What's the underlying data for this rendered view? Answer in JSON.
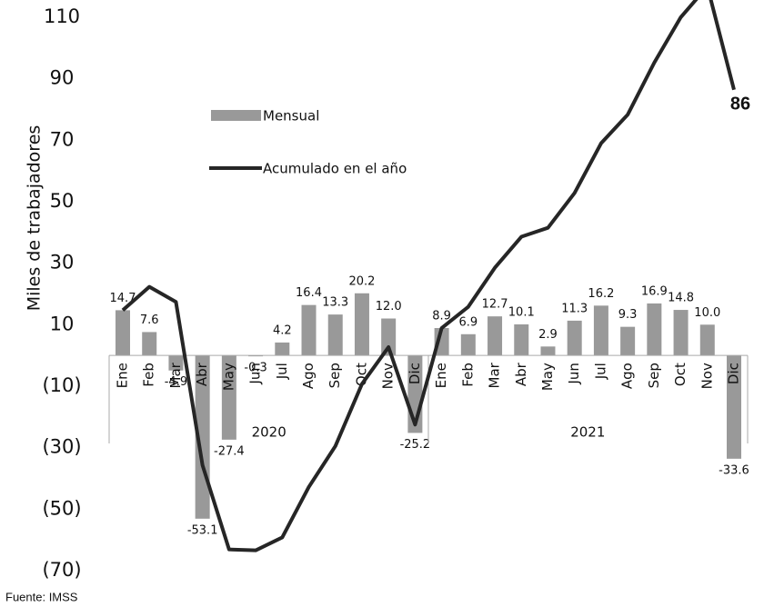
{
  "chart_data": {
    "type": "bar_line",
    "y_label": "Miles de trabajadores",
    "source": "Fuente: IMSS",
    "categories": [
      "Ene",
      "Feb",
      "Mar",
      "Abr",
      "May",
      "Jun",
      "Jul",
      "Ago",
      "Sep",
      "Oct",
      "Nov",
      "Dic",
      "Ene",
      "Feb",
      "Mar",
      "Abr",
      "May",
      "Jun",
      "Jul",
      "Ago",
      "Sep",
      "Oct",
      "Nov",
      "Dic"
    ],
    "groups": [
      "2020",
      "2021"
    ],
    "series": [
      {
        "name": "Mensual",
        "color": "#999999",
        "type": "bar",
        "values": [
          14.7,
          7.6,
          -4.9,
          -53.1,
          -27.4,
          -0.3,
          4.2,
          16.4,
          13.3,
          20.2,
          12.0,
          -25.2,
          8.9,
          6.9,
          12.7,
          10.1,
          2.9,
          11.3,
          16.2,
          9.3,
          16.9,
          14.8,
          10.0,
          -33.6
        ],
        "value_labels": [
          "14.7",
          "7.6",
          "-4.9",
          "-53.1",
          "-27.4",
          "-0.3",
          "4.2",
          "16.4",
          "13.3",
          "20.2",
          "12.0",
          "-25.2",
          "8.9",
          "6.9",
          "12.7",
          "10.1",
          "2.9",
          "11.3",
          "16.2",
          "9.3",
          "16.9",
          "14.8",
          "10.0",
          "-33.6"
        ]
      },
      {
        "name": "Acumulado en el año",
        "color": "#262626",
        "type": "line",
        "values": [
          14.7,
          22.3,
          17.4,
          -35.7,
          -63.1,
          -63.4,
          -59.2,
          -42.8,
          -29.5,
          -9.3,
          2.7,
          -22.5,
          8.9,
          15.8,
          28.5,
          38.6,
          41.5,
          52.8,
          69.0,
          78.3,
          95.2,
          110.0,
          120.0,
          86.4
        ]
      }
    ],
    "annotations": [
      {
        "text": "86"
      }
    ],
    "ylim": [
      -70,
      115
    ],
    "yticks": [
      110,
      90,
      70,
      50,
      30,
      10,
      {
        "value": -10,
        "label": "(10)"
      },
      {
        "value": -30,
        "label": "(30)"
      },
      {
        "value": -50,
        "label": "(50)"
      },
      {
        "value": -70,
        "label": "(70)"
      }
    ]
  }
}
